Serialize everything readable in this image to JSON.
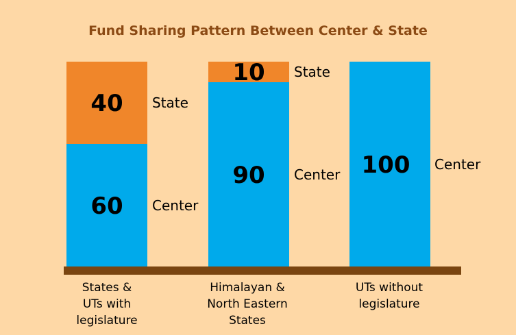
{
  "colors": {
    "background": "#fed8a6",
    "center": "#00aaeb",
    "state": "#f0862a",
    "axis": "#7a4510",
    "title": "#8b4a14"
  },
  "chart_data": {
    "type": "bar",
    "stacked": true,
    "title": "Fund Sharing Pattern Between Center & State",
    "xlabel": "",
    "ylabel": "",
    "ylim": [
      0,
      100
    ],
    "grid": false,
    "legend": "none",
    "categories": [
      "States & UTs with legislature",
      "Himalayan & North Eastern States",
      "UTs without legislature"
    ],
    "category_lines": [
      [
        "States &",
        "UTs with",
        "legislature"
      ],
      [
        "Himalayan &",
        "North Eastern",
        "States"
      ],
      [
        "UTs without",
        "legislature"
      ]
    ],
    "series": [
      {
        "name": "Center",
        "values": [
          60,
          90,
          100
        ]
      },
      {
        "name": "State",
        "values": [
          40,
          10,
          0
        ]
      }
    ]
  }
}
